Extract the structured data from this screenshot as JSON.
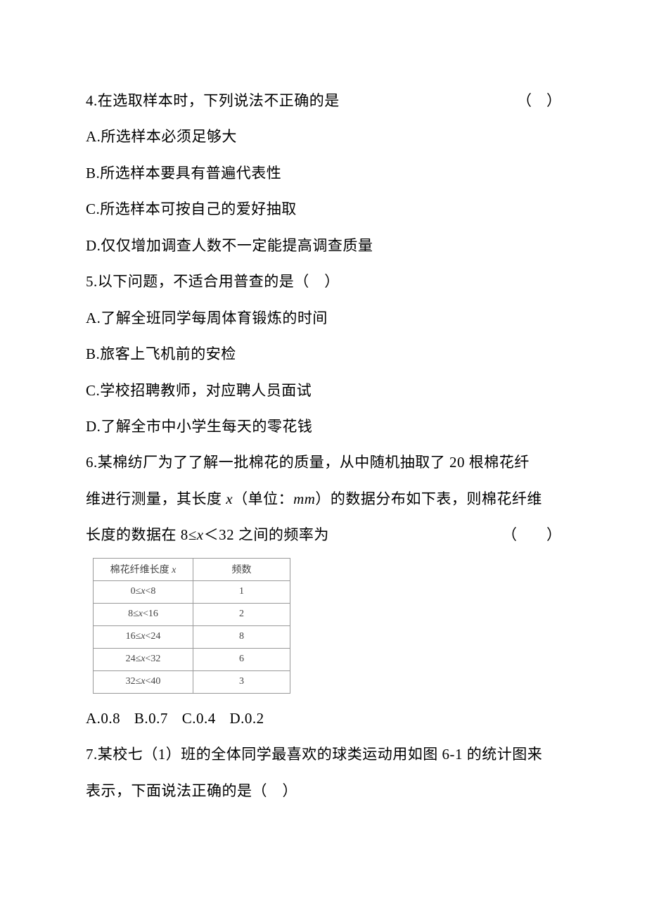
{
  "q4": {
    "stem": "4.在选取样本时，下列说法不正确的是",
    "paren": "（　）",
    "opts": {
      "a": "A.所选样本必须足够大",
      "b": "B.所选样本要具有普遍代表性",
      "c": "C.所选样本可按自己的爱好抽取",
      "d": "D.仅仅增加调查人数不一定能提高调查质量"
    }
  },
  "q5": {
    "stem": "5.以下问题，不适合用普查的是（　）",
    "opts": {
      "a": "A.了解全班同学每周体育锻炼的时间",
      "b": "B.旅客上飞机前的安检",
      "c": "C.学校招聘教师，对应聘人员面试",
      "d": "D.了解全市中小学生每天的零花钱"
    }
  },
  "q6": {
    "line1": "6.某棉纺厂为了了解一批棉花的质量，从中随机抽取了 20 根棉花纤",
    "line2_pre": "维进行测量，其长度 ",
    "line2_x": "x",
    "line2_mid": "（单位：",
    "line2_mm": "mm",
    "line2_post": "）的数据分布如下表，则棉花纤维",
    "line3_pre": "长度的数据在 8≤",
    "line3_x": "x",
    "line3_post": "＜32 之间的频率为",
    "paren": "（　　）",
    "table": {
      "header": {
        "c1_pre": "棉花纤维长度 ",
        "c1_x": "x",
        "c2": "频数"
      },
      "rows": [
        {
          "range_pre": "0≤",
          "range_x": "x",
          "range_post": "<8",
          "freq": "1"
        },
        {
          "range_pre": "8≤",
          "range_x": "x",
          "range_post": "<16",
          "freq": "2"
        },
        {
          "range_pre": "16≤",
          "range_x": "x",
          "range_post": "<24",
          "freq": "8"
        },
        {
          "range_pre": "24≤",
          "range_x": "x",
          "range_post": "<32",
          "freq": "6"
        },
        {
          "range_pre": "32≤",
          "range_x": "x",
          "range_post": "<40",
          "freq": "3"
        }
      ]
    },
    "opts": {
      "a": "A.0.8",
      "b": "B.0.7",
      "c": "C.0.4",
      "d": "D.0.2"
    }
  },
  "q7": {
    "line1": "7.某校七（1）班的全体同学最喜欢的球类运动用如图 6-1 的统计图来",
    "line2": "表示，下面说法正确的是（　）"
  }
}
